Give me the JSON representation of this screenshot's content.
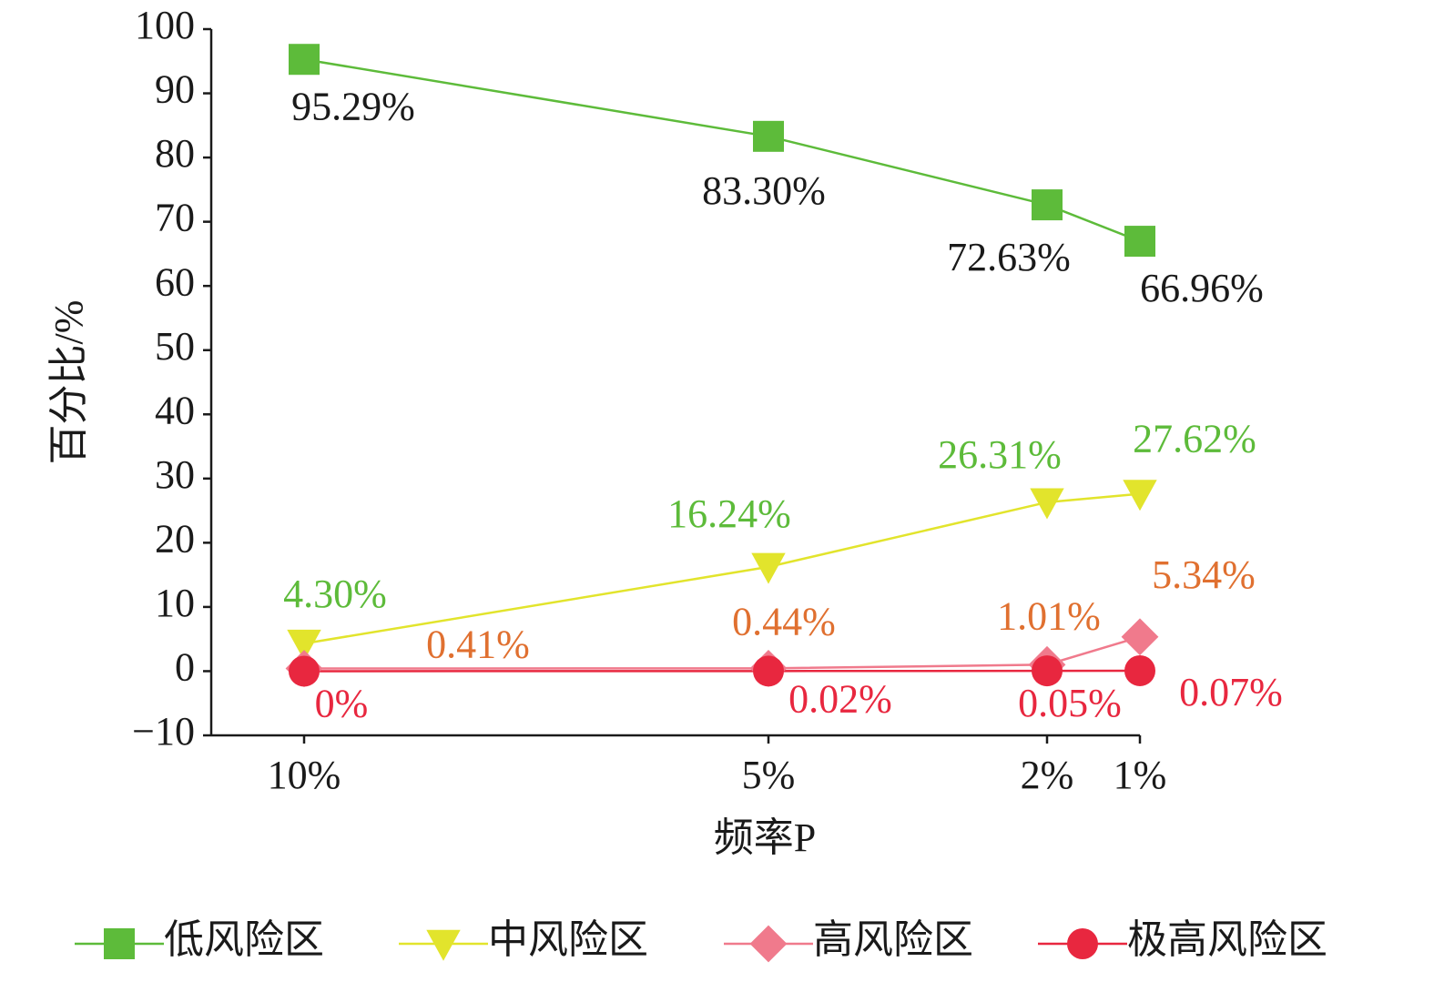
{
  "chart_data": {
    "type": "line",
    "x_label": "频率P",
    "y_label": "百分比/%",
    "x": [
      10,
      5,
      2,
      1
    ],
    "xlim": [
      11,
      1
    ],
    "xticks": [
      {
        "value": 10,
        "label": "10%"
      },
      {
        "value": 5,
        "label": "5%"
      },
      {
        "value": 2,
        "label": "2%"
      },
      {
        "value": 1,
        "label": "1%"
      }
    ],
    "ylim": [
      -10,
      100
    ],
    "yticks": [
      {
        "value": -10,
        "label": "−10"
      },
      0,
      10,
      20,
      30,
      40,
      50,
      60,
      70,
      80,
      90,
      100
    ],
    "grid": false,
    "legend": "bottom",
    "series": [
      {
        "name": "低风险区",
        "color": "#5dbb3a",
        "marker": "square",
        "label_color": "#1a1a1a",
        "values": [
          95.29,
          83.3,
          72.63,
          66.96
        ],
        "value_labels": [
          "95.29%",
          "83.30%",
          "72.63%",
          "66.96%"
        ]
      },
      {
        "name": "中风险区",
        "color": "#e2e42c",
        "marker": "triangle-down",
        "label_color": "#5dbb3a",
        "values": [
          4.3,
          16.24,
          26.31,
          27.62
        ],
        "value_labels": [
          "4.30%",
          "16.24%",
          "26.31%",
          "27.62%"
        ]
      },
      {
        "name": "高风险区",
        "color": "#f07a8c",
        "marker": "diamond",
        "label_color": "#e07030",
        "values": [
          0.41,
          0.44,
          1.01,
          5.34
        ],
        "value_labels": [
          "0.41%",
          "0.44%",
          "1.01%",
          "5.34%"
        ]
      },
      {
        "name": "极高风险区",
        "color": "#e8273f",
        "marker": "circle",
        "label_color": "#e8273f",
        "values": [
          0,
          0.02,
          0.05,
          0.07
        ],
        "value_labels": [
          "0%",
          "0.02%",
          "0.05%",
          "0.07%"
        ]
      }
    ]
  }
}
